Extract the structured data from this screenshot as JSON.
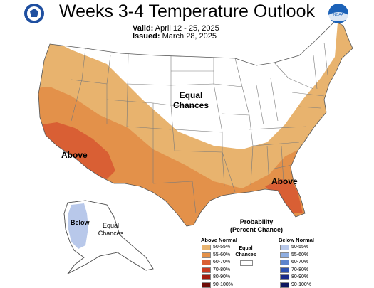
{
  "title": "Weeks 3-4 Temperature Outlook",
  "valid_label": "Valid:",
  "valid_value": "April 12 - 25, 2025",
  "issued_label": "Issued:",
  "issued_value": "March 28, 2025",
  "logos": {
    "left": "doc-seal-icon",
    "right": "noaa-logo-icon",
    "noaa_text": "NOAA"
  },
  "map_labels": {
    "equal_chances_line1": "Equal",
    "equal_chances_line2": "Chances",
    "above_west": "Above",
    "above_southeast": "Above",
    "below_alaska": "Below",
    "alaska_equal_line1": "Equal",
    "alaska_equal_line2": "Chances"
  },
  "legend": {
    "title_line1": "Probability",
    "title_line2": "(Percent Chance)",
    "above_header": "Above Normal",
    "below_header": "Below Normal",
    "equal_line1": "Equal",
    "equal_line2": "Chances",
    "above_items": [
      {
        "label": "50-55%",
        "color": "#e8b36e"
      },
      {
        "label": "55-60%",
        "color": "#e3914a"
      },
      {
        "label": "60-70%",
        "color": "#d95f34"
      },
      {
        "label": "70-80%",
        "color": "#c83a22"
      },
      {
        "label": "80-90%",
        "color": "#a41c10"
      },
      {
        "label": "90-100%",
        "color": "#6e0a06"
      }
    ],
    "below_items": [
      {
        "label": "50-55%",
        "color": "#b8c8ea"
      },
      {
        "label": "55-60%",
        "color": "#8faee0"
      },
      {
        "label": "60-70%",
        "color": "#5d84cc"
      },
      {
        "label": "70-80%",
        "color": "#2d52b0"
      },
      {
        "label": "80-90%",
        "color": "#1a2c8a"
      },
      {
        "label": "90-100%",
        "color": "#0d1660"
      }
    ]
  }
}
